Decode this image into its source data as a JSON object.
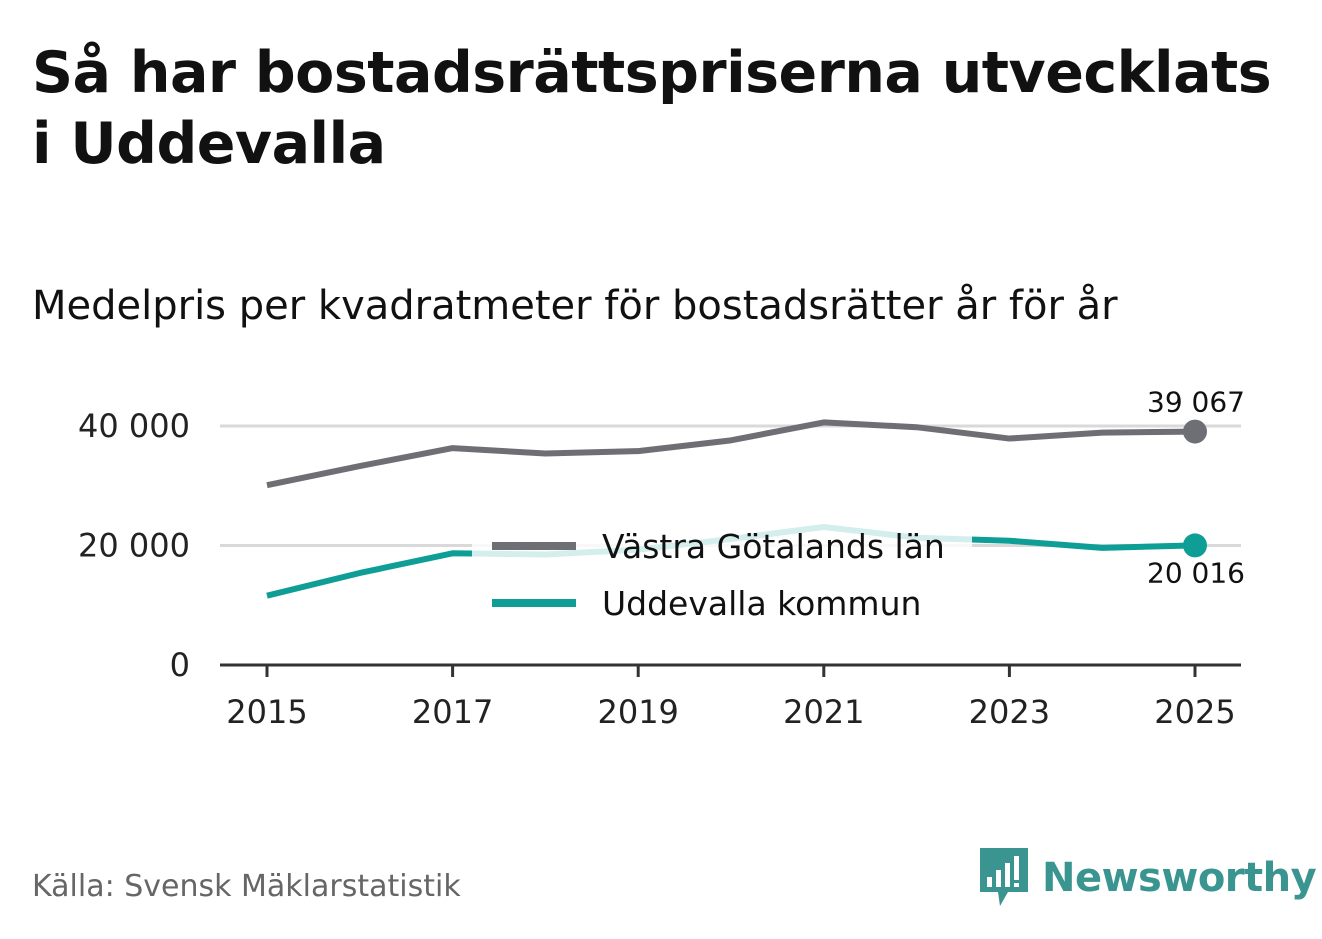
{
  "title": "Så har bostadsrättspriserna utvecklats i Uddevalla",
  "subtitle": "Medelpris per kvadratmeter för bostadsrätter år för år",
  "source": "Källa: Svensk Mäklarstatistik",
  "brand": "Newsworthy",
  "colors": {
    "vastra": "#6e6e75",
    "uddevalla": "#0e9e96",
    "grid": "#d9d9d9",
    "axis": "#333333",
    "brand": "#3a9490"
  },
  "chart_data": {
    "type": "line",
    "title": "Medelpris per kvadratmeter för bostadsrätter år för år",
    "x": [
      2015,
      2016,
      2017,
      2018,
      2019,
      2020,
      2021,
      2022,
      2023,
      2024,
      2025
    ],
    "xticks": [
      2015,
      2017,
      2019,
      2021,
      2023,
      2025
    ],
    "xtick_labels": [
      "2015",
      "2017",
      "2019",
      "2021",
      "2023",
      "2025"
    ],
    "yticks": [
      0,
      20000,
      40000
    ],
    "ytick_labels": [
      "0",
      "20 000",
      "40 000"
    ],
    "ylim": [
      0,
      40000
    ],
    "xlim": [
      2015,
      2025
    ],
    "grid": true,
    "legend_position": "center",
    "series": [
      {
        "name": "Västra Götalands län",
        "color": "#6e6e75",
        "values": [
          30100,
          33300,
          36300,
          35400,
          35800,
          37600,
          40600,
          39800,
          37900,
          38900,
          39067
        ],
        "end_label": "39 067"
      },
      {
        "name": "Uddevalla kommun",
        "color": "#0e9e96",
        "values": [
          11600,
          15400,
          18700,
          18500,
          19300,
          21100,
          23100,
          21300,
          20800,
          19600,
          20016
        ],
        "end_label": "20 016"
      }
    ]
  }
}
